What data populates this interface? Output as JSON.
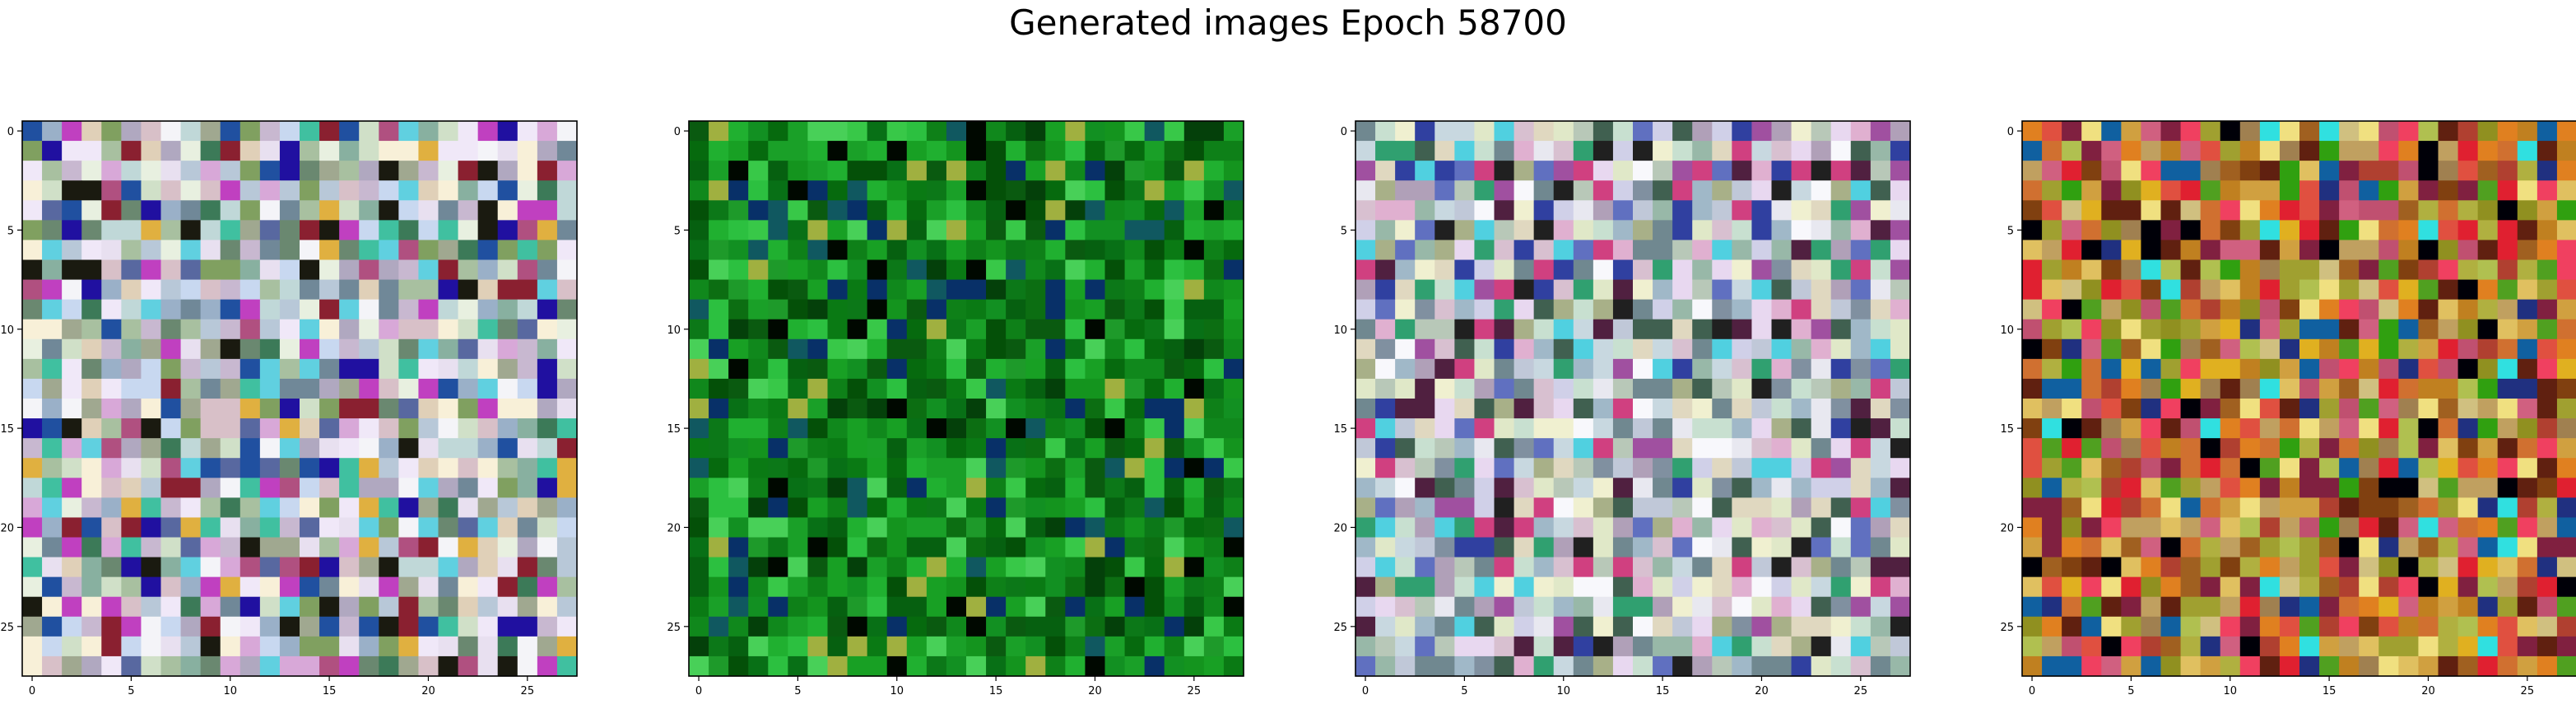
{
  "figure": {
    "title": "Generated images Epoch 58700"
  },
  "chart_data": [
    {
      "type": "heatmap",
      "title": "",
      "xlabel": "",
      "ylabel": "",
      "grid": false,
      "xlim": [
        -0.5,
        27.5
      ],
      "ylim": [
        27.5,
        -0.5
      ],
      "grid_size": [
        28,
        28
      ],
      "x_ticks": [
        0,
        5,
        10,
        15,
        20,
        25
      ],
      "y_ticks": [
        0,
        5,
        10,
        15,
        20,
        25
      ],
      "palette": "pastel-noise",
      "colors": [
        "#b8c8d8",
        "#c8b8d0",
        "#d0e0c8",
        "#a8c0a0",
        "#e8e0f0",
        "#f4f4f8",
        "#9ab0c8",
        "#d8c0c8",
        "#c0d8d8",
        "#b0a8c0",
        "#88b0a0",
        "#e0d0b8",
        "#6a8870",
        "#c8d8f0",
        "#f0e8f8",
        "#a0a890",
        "#3c7a58",
        "#d8a8d8",
        "#5868a0",
        "#e8f0e0",
        "#1a1a10",
        "#8a2030",
        "#2050a0",
        "#c040c0",
        "#40c0a0",
        "#80a060",
        "#b05080",
        "#e0b040",
        "#2010a0",
        "#60d0e0",
        "#708898",
        "#f8f0d8"
      ]
    },
    {
      "type": "heatmap",
      "title": "",
      "xlabel": "",
      "ylabel": "",
      "grid": false,
      "xlim": [
        -0.5,
        27.5
      ],
      "ylim": [
        27.5,
        -0.5
      ],
      "grid_size": [
        28,
        28
      ],
      "x_ticks": [
        0,
        5,
        10,
        15,
        20,
        25
      ],
      "y_ticks": [
        0,
        5,
        10,
        15,
        20,
        25
      ],
      "palette": "green-noise",
      "colors": [
        "#0a7a14",
        "#10881c",
        "#066010",
        "#14941e",
        "#0c6e12",
        "#1aa028",
        "#045008",
        "#0e8018",
        "#20b030",
        "#087016",
        "#2cc040",
        "#066a0e",
        "#129022",
        "#0a5a10",
        "#18a024",
        "#04400a",
        "#38c848",
        "#0c7818",
        "#1e9a2a",
        "#a0b040",
        "#000800",
        "#105860",
        "#083068",
        "#48d058"
      ]
    },
    {
      "type": "heatmap",
      "title": "",
      "xlabel": "",
      "ylabel": "",
      "grid": false,
      "xlim": [
        -0.5,
        27.5
      ],
      "ylim": [
        27.5,
        -0.5
      ],
      "grid_size": [
        28,
        28
      ],
      "x_ticks": [
        0,
        5,
        10,
        15,
        20,
        25
      ],
      "y_ticks": [
        0,
        5,
        10,
        15,
        20,
        25
      ],
      "palette": "pastel-noise",
      "colors": [
        "#c0c8d8",
        "#b8c8b8",
        "#d8c0d0",
        "#c8d8e0",
        "#e8e8f0",
        "#f8f8fc",
        "#a0b8c8",
        "#b0a0b8",
        "#98b8a8",
        "#e0d8c0",
        "#c8e0d0",
        "#d0d0e8",
        "#708890",
        "#e8d8f0",
        "#406050",
        "#a8b088",
        "#202020",
        "#502040",
        "#3040a0",
        "#e0e8c8",
        "#a050a0",
        "#50d0e0",
        "#30a070",
        "#e0b0d0",
        "#d04080",
        "#8090a0",
        "#f0f0d0",
        "#6070c0"
      ]
    },
    {
      "type": "heatmap",
      "title": "",
      "xlabel": "",
      "ylabel": "",
      "grid": false,
      "xlim": [
        -0.5,
        27.5
      ],
      "ylim": [
        27.5,
        -0.5
      ],
      "grid_size": [
        28,
        28
      ],
      "x_ticks": [
        0,
        5,
        10,
        15,
        20,
        25
      ],
      "y_ticks": [
        0,
        5,
        10,
        15,
        20,
        25
      ],
      "palette": "warm-noise",
      "colors": [
        "#c08020",
        "#d0a040",
        "#a06020",
        "#e0c060",
        "#b04030",
        "#c05070",
        "#909020",
        "#d07030",
        "#a0a030",
        "#e08020",
        "#602010",
        "#c0a060",
        "#b0b040",
        "#d06080",
        "#e02030",
        "#f04060",
        "#802040",
        "#50a020",
        "#30a010",
        "#e0b020",
        "#a08050",
        "#000008",
        "#203080",
        "#30e0e0",
        "#1060a0",
        "#f0e080",
        "#804010",
        "#d0c080",
        "#b0c050",
        "#e05040"
      ]
    }
  ]
}
